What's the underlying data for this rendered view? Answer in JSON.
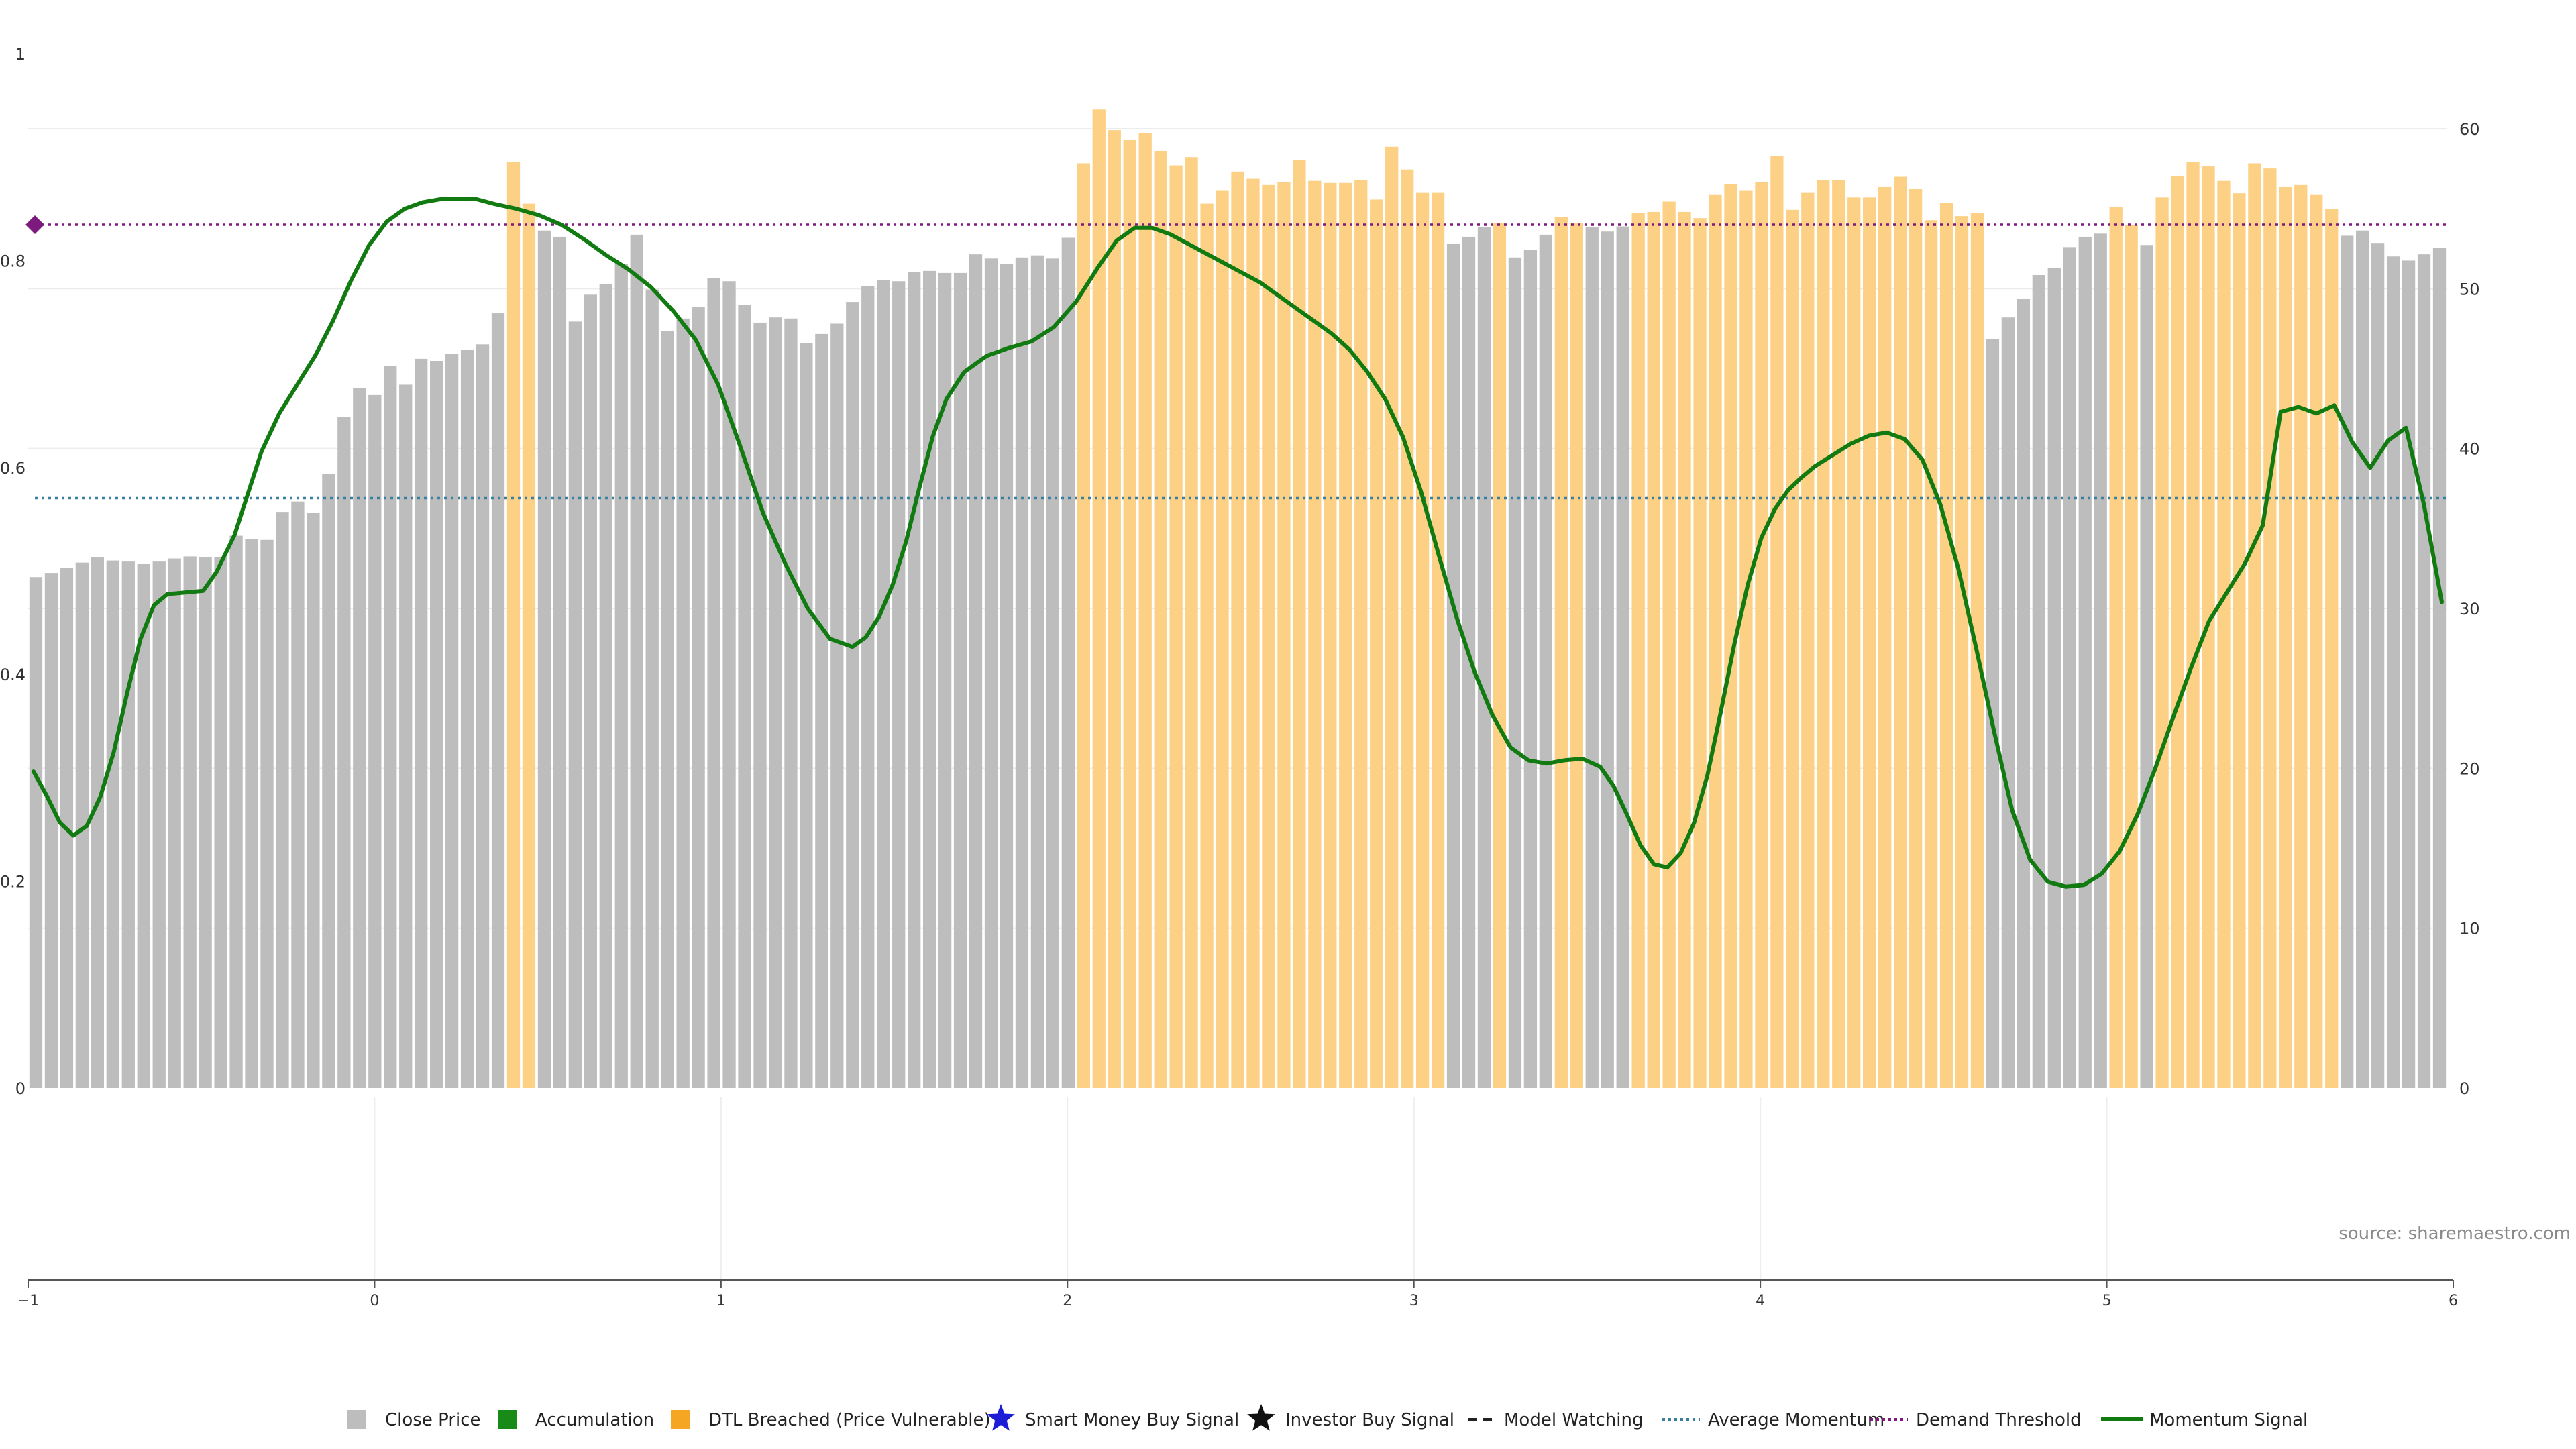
{
  "chart_data": {
    "type": "bar",
    "source_label": "source: sharemaestro.com",
    "x": {
      "range": [
        -1,
        6
      ],
      "ticks": [
        "−1",
        "0",
        "1",
        "2",
        "3",
        "4",
        "5",
        "6"
      ]
    },
    "y_left": {
      "range": [
        0,
        1
      ],
      "ticks": [
        "0",
        "0.2",
        "0.4",
        "0.6",
        "0.8",
        "1"
      ]
    },
    "y_right": {
      "range": [
        0,
        65
      ],
      "ticks": [
        "0",
        "10",
        "20",
        "30",
        "40",
        "50",
        "60"
      ]
    },
    "bar_colors": {
      "gray": "#bdbdbd",
      "orange": "#fcd185"
    },
    "close_price": [
      {
        "v": 0.494,
        "c": "gray"
      },
      {
        "v": 0.498,
        "c": "gray"
      },
      {
        "v": 0.503,
        "c": "gray"
      },
      {
        "v": 0.508,
        "c": "gray"
      },
      {
        "v": 0.513,
        "c": "gray"
      },
      {
        "v": 0.51,
        "c": "gray"
      },
      {
        "v": 0.509,
        "c": "gray"
      },
      {
        "v": 0.507,
        "c": "gray"
      },
      {
        "v": 0.509,
        "c": "gray"
      },
      {
        "v": 0.512,
        "c": "gray"
      },
      {
        "v": 0.514,
        "c": "gray"
      },
      {
        "v": 0.513,
        "c": "gray"
      },
      {
        "v": 0.513,
        "c": "gray"
      },
      {
        "v": 0.534,
        "c": "gray"
      },
      {
        "v": 0.531,
        "c": "gray"
      },
      {
        "v": 0.53,
        "c": "gray"
      },
      {
        "v": 0.557,
        "c": "gray"
      },
      {
        "v": 0.567,
        "c": "gray"
      },
      {
        "v": 0.556,
        "c": "gray"
      },
      {
        "v": 0.594,
        "c": "gray"
      },
      {
        "v": 0.649,
        "c": "gray"
      },
      {
        "v": 0.677,
        "c": "gray"
      },
      {
        "v": 0.67,
        "c": "gray"
      },
      {
        "v": 0.698,
        "c": "gray"
      },
      {
        "v": 0.68,
        "c": "gray"
      },
      {
        "v": 0.705,
        "c": "gray"
      },
      {
        "v": 0.703,
        "c": "gray"
      },
      {
        "v": 0.71,
        "c": "gray"
      },
      {
        "v": 0.714,
        "c": "gray"
      },
      {
        "v": 0.719,
        "c": "gray"
      },
      {
        "v": 0.749,
        "c": "gray"
      },
      {
        "v": 0.895,
        "c": "orange"
      },
      {
        "v": 0.855,
        "c": "orange"
      },
      {
        "v": 0.829,
        "c": "gray"
      },
      {
        "v": 0.823,
        "c": "gray"
      },
      {
        "v": 0.741,
        "c": "gray"
      },
      {
        "v": 0.767,
        "c": "gray"
      },
      {
        "v": 0.777,
        "c": "gray"
      },
      {
        "v": 0.797,
        "c": "gray"
      },
      {
        "v": 0.825,
        "c": "gray"
      },
      {
        "v": 0.772,
        "c": "gray"
      },
      {
        "v": 0.732,
        "c": "gray"
      },
      {
        "v": 0.744,
        "c": "gray"
      },
      {
        "v": 0.755,
        "c": "gray"
      },
      {
        "v": 0.783,
        "c": "gray"
      },
      {
        "v": 0.78,
        "c": "gray"
      },
      {
        "v": 0.757,
        "c": "gray"
      },
      {
        "v": 0.74,
        "c": "gray"
      },
      {
        "v": 0.745,
        "c": "gray"
      },
      {
        "v": 0.744,
        "c": "gray"
      },
      {
        "v": 0.72,
        "c": "gray"
      },
      {
        "v": 0.729,
        "c": "gray"
      },
      {
        "v": 0.739,
        "c": "gray"
      },
      {
        "v": 0.76,
        "c": "gray"
      },
      {
        "v": 0.775,
        "c": "gray"
      },
      {
        "v": 0.781,
        "c": "gray"
      },
      {
        "v": 0.78,
        "c": "gray"
      },
      {
        "v": 0.789,
        "c": "gray"
      },
      {
        "v": 0.79,
        "c": "gray"
      },
      {
        "v": 0.788,
        "c": "gray"
      },
      {
        "v": 0.788,
        "c": "gray"
      },
      {
        "v": 0.806,
        "c": "gray"
      },
      {
        "v": 0.802,
        "c": "gray"
      },
      {
        "v": 0.797,
        "c": "gray"
      },
      {
        "v": 0.803,
        "c": "gray"
      },
      {
        "v": 0.805,
        "c": "gray"
      },
      {
        "v": 0.802,
        "c": "gray"
      },
      {
        "v": 0.822,
        "c": "gray"
      },
      {
        "v": 0.894,
        "c": "orange"
      },
      {
        "v": 0.946,
        "c": "orange"
      },
      {
        "v": 0.926,
        "c": "orange"
      },
      {
        "v": 0.917,
        "c": "orange"
      },
      {
        "v": 0.923,
        "c": "orange"
      },
      {
        "v": 0.906,
        "c": "orange"
      },
      {
        "v": 0.892,
        "c": "orange"
      },
      {
        "v": 0.9,
        "c": "orange"
      },
      {
        "v": 0.855,
        "c": "orange"
      },
      {
        "v": 0.868,
        "c": "orange"
      },
      {
        "v": 0.886,
        "c": "orange"
      },
      {
        "v": 0.879,
        "c": "orange"
      },
      {
        "v": 0.873,
        "c": "orange"
      },
      {
        "v": 0.876,
        "c": "orange"
      },
      {
        "v": 0.897,
        "c": "orange"
      },
      {
        "v": 0.877,
        "c": "orange"
      },
      {
        "v": 0.875,
        "c": "orange"
      },
      {
        "v": 0.875,
        "c": "orange"
      },
      {
        "v": 0.878,
        "c": "orange"
      },
      {
        "v": 0.859,
        "c": "orange"
      },
      {
        "v": 0.91,
        "c": "orange"
      },
      {
        "v": 0.888,
        "c": "orange"
      },
      {
        "v": 0.866,
        "c": "orange"
      },
      {
        "v": 0.866,
        "c": "orange"
      },
      {
        "v": 0.816,
        "c": "gray"
      },
      {
        "v": 0.823,
        "c": "gray"
      },
      {
        "v": 0.832,
        "c": "gray"
      },
      {
        "v": 0.836,
        "c": "orange"
      },
      {
        "v": 0.803,
        "c": "gray"
      },
      {
        "v": 0.81,
        "c": "gray"
      },
      {
        "v": 0.825,
        "c": "gray"
      },
      {
        "v": 0.842,
        "c": "orange"
      },
      {
        "v": 0.836,
        "c": "orange"
      },
      {
        "v": 0.832,
        "c": "gray"
      },
      {
        "v": 0.828,
        "c": "gray"
      },
      {
        "v": 0.833,
        "c": "gray"
      },
      {
        "v": 0.846,
        "c": "orange"
      },
      {
        "v": 0.847,
        "c": "orange"
      },
      {
        "v": 0.857,
        "c": "orange"
      },
      {
        "v": 0.847,
        "c": "orange"
      },
      {
        "v": 0.841,
        "c": "orange"
      },
      {
        "v": 0.864,
        "c": "orange"
      },
      {
        "v": 0.874,
        "c": "orange"
      },
      {
        "v": 0.868,
        "c": "orange"
      },
      {
        "v": 0.876,
        "c": "orange"
      },
      {
        "v": 0.901,
        "c": "orange"
      },
      {
        "v": 0.849,
        "c": "orange"
      },
      {
        "v": 0.866,
        "c": "orange"
      },
      {
        "v": 0.878,
        "c": "orange"
      },
      {
        "v": 0.878,
        "c": "orange"
      },
      {
        "v": 0.861,
        "c": "orange"
      },
      {
        "v": 0.861,
        "c": "orange"
      },
      {
        "v": 0.871,
        "c": "orange"
      },
      {
        "v": 0.881,
        "c": "orange"
      },
      {
        "v": 0.869,
        "c": "orange"
      },
      {
        "v": 0.839,
        "c": "orange"
      },
      {
        "v": 0.856,
        "c": "orange"
      },
      {
        "v": 0.843,
        "c": "orange"
      },
      {
        "v": 0.846,
        "c": "orange"
      },
      {
        "v": 0.724,
        "c": "gray"
      },
      {
        "v": 0.745,
        "c": "gray"
      },
      {
        "v": 0.763,
        "c": "gray"
      },
      {
        "v": 0.786,
        "c": "gray"
      },
      {
        "v": 0.793,
        "c": "gray"
      },
      {
        "v": 0.813,
        "c": "gray"
      },
      {
        "v": 0.823,
        "c": "gray"
      },
      {
        "v": 0.826,
        "c": "gray"
      },
      {
        "v": 0.852,
        "c": "orange"
      },
      {
        "v": 0.834,
        "c": "orange"
      },
      {
        "v": 0.815,
        "c": "gray"
      },
      {
        "v": 0.861,
        "c": "orange"
      },
      {
        "v": 0.882,
        "c": "orange"
      },
      {
        "v": 0.895,
        "c": "orange"
      },
      {
        "v": 0.891,
        "c": "orange"
      },
      {
        "v": 0.877,
        "c": "orange"
      },
      {
        "v": 0.865,
        "c": "orange"
      },
      {
        "v": 0.894,
        "c": "orange"
      },
      {
        "v": 0.889,
        "c": "orange"
      },
      {
        "v": 0.871,
        "c": "orange"
      },
      {
        "v": 0.873,
        "c": "orange"
      },
      {
        "v": 0.864,
        "c": "orange"
      },
      {
        "v": 0.85,
        "c": "orange"
      },
      {
        "v": 0.824,
        "c": "gray"
      },
      {
        "v": 0.829,
        "c": "gray"
      },
      {
        "v": 0.817,
        "c": "gray"
      },
      {
        "v": 0.804,
        "c": "gray"
      },
      {
        "v": 0.8,
        "c": "gray"
      },
      {
        "v": 0.806,
        "c": "gray"
      },
      {
        "v": 0.812,
        "c": "gray"
      }
    ],
    "momentum_signal": {
      "color": "#117a11",
      "points": [
        [
          -0.979,
          19.8
        ],
        [
          -0.95,
          18.3
        ],
        [
          -0.92,
          16.6
        ],
        [
          -0.89,
          15.8
        ],
        [
          -0.86,
          16.4
        ],
        [
          -0.83,
          18.2
        ],
        [
          -0.8,
          21.0
        ],
        [
          -0.77,
          24.7
        ],
        [
          -0.74,
          28.1
        ],
        [
          -0.71,
          30.2
        ],
        [
          -0.68,
          30.9
        ],
        [
          -0.64,
          31.0
        ],
        [
          -0.6,
          31.1
        ],
        [
          -0.57,
          32.3
        ],
        [
          -0.53,
          34.6
        ],
        [
          -0.5,
          37.2
        ],
        [
          -0.47,
          39.8
        ],
        [
          -0.43,
          42.2
        ],
        [
          -0.39,
          44.0
        ],
        [
          -0.35,
          45.8
        ],
        [
          -0.31,
          48.0
        ],
        [
          -0.27,
          50.5
        ],
        [
          -0.23,
          52.7
        ],
        [
          -0.19,
          54.2
        ],
        [
          -0.15,
          55.0
        ],
        [
          -0.11,
          55.4
        ],
        [
          -0.07,
          55.6
        ],
        [
          -0.03,
          55.6
        ],
        [
          0.01,
          55.6
        ],
        [
          0.05,
          55.3
        ],
        [
          0.1,
          55.0
        ],
        [
          0.15,
          54.6
        ],
        [
          0.2,
          54.0
        ],
        [
          0.25,
          53.1
        ],
        [
          0.3,
          52.1
        ],
        [
          0.35,
          51.2
        ],
        [
          0.4,
          50.1
        ],
        [
          0.45,
          48.6
        ],
        [
          0.5,
          46.8
        ],
        [
          0.55,
          44.0
        ],
        [
          0.6,
          40.1
        ],
        [
          0.65,
          36.0
        ],
        [
          0.7,
          32.8
        ],
        [
          0.75,
          30.0
        ],
        [
          0.8,
          28.1
        ],
        [
          0.85,
          27.6
        ],
        [
          0.88,
          28.2
        ],
        [
          0.91,
          29.5
        ],
        [
          0.94,
          31.5
        ],
        [
          0.97,
          34.2
        ],
        [
          1.0,
          37.6
        ],
        [
          1.03,
          40.8
        ],
        [
          1.06,
          43.1
        ],
        [
          1.1,
          44.8
        ],
        [
          1.15,
          45.8
        ],
        [
          1.2,
          46.3
        ],
        [
          1.25,
          46.7
        ],
        [
          1.3,
          47.6
        ],
        [
          1.35,
          49.2
        ],
        [
          1.4,
          51.4
        ],
        [
          1.44,
          53.0
        ],
        [
          1.48,
          53.8
        ],
        [
          1.52,
          53.8
        ],
        [
          1.56,
          53.4
        ],
        [
          1.6,
          52.8
        ],
        [
          1.64,
          52.2
        ],
        [
          1.68,
          51.6
        ],
        [
          1.72,
          51.0
        ],
        [
          1.76,
          50.4
        ],
        [
          1.8,
          49.6
        ],
        [
          1.84,
          48.8
        ],
        [
          1.88,
          48.0
        ],
        [
          1.92,
          47.2
        ],
        [
          1.96,
          46.2
        ],
        [
          2.0,
          44.8
        ],
        [
          2.04,
          43.1
        ],
        [
          2.08,
          40.7
        ],
        [
          2.12,
          37.3
        ],
        [
          2.16,
          33.3
        ],
        [
          2.2,
          29.4
        ],
        [
          2.24,
          26.0
        ],
        [
          2.28,
          23.3
        ],
        [
          2.32,
          21.3
        ],
        [
          2.36,
          20.5
        ],
        [
          2.4,
          20.3
        ],
        [
          2.44,
          20.5
        ],
        [
          2.48,
          20.6
        ],
        [
          2.52,
          20.1
        ],
        [
          2.55,
          18.9
        ],
        [
          2.58,
          17.1
        ],
        [
          2.61,
          15.2
        ],
        [
          2.64,
          14.0
        ],
        [
          2.67,
          13.8
        ],
        [
          2.7,
          14.7
        ],
        [
          2.73,
          16.6
        ],
        [
          2.76,
          19.6
        ],
        [
          2.79,
          23.6
        ],
        [
          2.82,
          27.8
        ],
        [
          2.85,
          31.5
        ],
        [
          2.88,
          34.4
        ],
        [
          2.91,
          36.2
        ],
        [
          2.94,
          37.4
        ],
        [
          2.97,
          38.2
        ],
        [
          3.0,
          38.9
        ],
        [
          3.04,
          39.6
        ],
        [
          3.08,
          40.3
        ],
        [
          3.12,
          40.8
        ],
        [
          3.16,
          41.0
        ],
        [
          3.2,
          40.6
        ],
        [
          3.24,
          39.3
        ],
        [
          3.28,
          36.5
        ],
        [
          3.32,
          32.5
        ],
        [
          3.36,
          27.5
        ],
        [
          3.4,
          22.3
        ],
        [
          3.44,
          17.4
        ],
        [
          3.48,
          14.3
        ],
        [
          3.52,
          12.9
        ],
        [
          3.56,
          12.6
        ],
        [
          3.6,
          12.7
        ],
        [
          3.64,
          13.4
        ],
        [
          3.68,
          14.8
        ],
        [
          3.72,
          17.1
        ],
        [
          3.76,
          20.0
        ],
        [
          3.8,
          23.2
        ],
        [
          3.84,
          26.3
        ],
        [
          3.88,
          29.2
        ],
        [
          3.92,
          31.0
        ],
        [
          3.96,
          32.8
        ],
        [
          4.0,
          35.2
        ],
        [
          4.04,
          42.3
        ],
        [
          4.08,
          42.6
        ],
        [
          4.12,
          42.2
        ],
        [
          4.16,
          42.7
        ],
        [
          4.2,
          40.4
        ],
        [
          4.24,
          38.8
        ],
        [
          4.28,
          40.5
        ],
        [
          4.32,
          41.3
        ],
        [
          4.36,
          36.5
        ],
        [
          4.4,
          30.4
        ]
      ]
    },
    "average_momentum": {
      "value": 36.9,
      "color": "#3b7f9e"
    },
    "demand_threshold": {
      "value": 54.0,
      "color": "#7d1a7d"
    },
    "legend": [
      {
        "label": "Close Price",
        "icon": "square-icon",
        "color": "#bdbdbd"
      },
      {
        "label": "Accumulation",
        "icon": "square-icon",
        "color": "#178a17"
      },
      {
        "label": "DTL Breached (Price Vulnerable)",
        "icon": "square-icon",
        "color": "#f5a623"
      },
      {
        "label": "Smart Money Buy Signal",
        "icon": "star-icon",
        "color": "#1c1cd6"
      },
      {
        "label": "Investor Buy Signal",
        "icon": "star-icon",
        "color": "#111111"
      },
      {
        "label": "Model Watching",
        "icon": "dashed-line-icon",
        "color": "#222222"
      },
      {
        "label": "Average Momentum",
        "icon": "dotted-line-icon",
        "color": "#3b7f9e"
      },
      {
        "label": "Demand Threshold",
        "icon": "dotted-line-icon",
        "color": "#7d1a7d"
      },
      {
        "label": "Momentum Signal",
        "icon": "solid-line-icon",
        "color": "#117a11"
      }
    ]
  }
}
